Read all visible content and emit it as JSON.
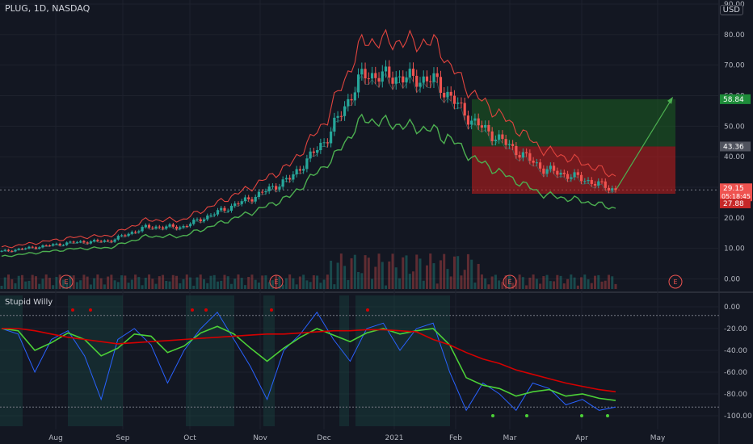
{
  "header": {
    "symbol_title": "PLUG, 1D, NASDAQ",
    "currency": "USD"
  },
  "indicator": {
    "title": "Stupid Willy"
  },
  "colors": {
    "background": "#131722",
    "grid": "#1e222d",
    "up": "#26a69a",
    "down": "#ef5350",
    "upper_band": "#e0443e",
    "lower_band": "#4caf50",
    "profit_zone": "#1b5e20",
    "loss_zone": "#b71c1c",
    "willy_line": "#2962ff",
    "signal_green": "#4cd137",
    "signal_red": "#d50000",
    "axis_text": "#b2b5be"
  },
  "chart_data": [
    {
      "type": "candlestick",
      "title": "PLUG, 1D, NASDAQ",
      "x_ticks": [
        "Aug",
        "Sep",
        "Oct",
        "Nov",
        "Dec",
        "2021",
        "Feb",
        "Mar",
        "Apr",
        "May"
      ],
      "y_ticks": [
        "90.00",
        "80.00",
        "70.00",
        "60.00",
        "50.00",
        "40.00",
        "30.00",
        "20.00",
        "10.00",
        "0.00"
      ],
      "ylim": [
        0,
        90
      ],
      "earnings_markers": [
        "E",
        "E",
        "E",
        "E"
      ],
      "price_labels": {
        "target": "58.84",
        "entry": "43.36",
        "last": "29.15",
        "countdown": "05:18:45",
        "stop": "27.88"
      },
      "approx_close_path": [
        [
          "Jul",
          9.0
        ],
        [
          "Aug",
          10.5
        ],
        [
          "Sep",
          12.0
        ],
        [
          "Oct",
          12.5
        ],
        [
          "Oct-late",
          17.0
        ],
        [
          "Nov",
          17.0
        ],
        [
          "Nov-late",
          22.0
        ],
        [
          "Dec",
          27.0
        ],
        [
          "Dec-late",
          33.0
        ],
        [
          "2021",
          46.0
        ],
        [
          "Jan-mid",
          67.0
        ],
        [
          "Jan-late",
          66.0
        ],
        [
          "Feb",
          65.0
        ],
        [
          "Feb-mid",
          52.0
        ],
        [
          "Mar",
          44.0
        ],
        [
          "Mar-mid",
          36.0
        ],
        [
          "Apr",
          33.0
        ],
        [
          "Apr-mid",
          29.15
        ]
      ]
    },
    {
      "type": "line",
      "title": "Stupid Willy",
      "y_ticks": [
        "0.00",
        "-20.00",
        "-40.00",
        "-60.00",
        "-80.00",
        "-100.00"
      ],
      "ylim": [
        -100,
        0
      ],
      "series": [
        {
          "values": [
            -20,
            -25,
            -60,
            -30,
            -22,
            -45,
            -85,
            -30,
            -20,
            -35,
            -70,
            -40,
            -20,
            -5,
            -30,
            -55,
            -85,
            -40,
            -25,
            -5,
            -30,
            -50,
            -20,
            -15,
            -40,
            -20,
            -15,
            -60,
            -95,
            -70,
            -80,
            -95,
            -70,
            -75,
            -90,
            -85,
            -95,
            -92
          ]
        },
        {
          "values": [
            -20,
            -22,
            -40,
            -33,
            -24,
            -30,
            -45,
            -38,
            -25,
            -27,
            -42,
            -36,
            -24,
            -18,
            -25,
            -38,
            -50,
            -38,
            -28,
            -20,
            -26,
            -32,
            -24,
            -20,
            -25,
            -22,
            -20,
            -35,
            -65,
            -72,
            -75,
            -82,
            -78,
            -76,
            -82,
            -80,
            -84,
            -86
          ]
        },
        {
          "values": [
            -20,
            -20,
            -22,
            -25,
            -28,
            -30,
            -32,
            -34,
            -33,
            -32,
            -31,
            -30,
            -29,
            -28,
            -27,
            -26,
            -25,
            -25,
            -24,
            -23,
            -22,
            -22,
            -21,
            -21,
            -22,
            -23,
            -30,
            -35,
            -42,
            -48,
            -52,
            -58,
            -62,
            -66,
            -70,
            -73,
            -76,
            -78
          ]
        }
      ]
    }
  ]
}
